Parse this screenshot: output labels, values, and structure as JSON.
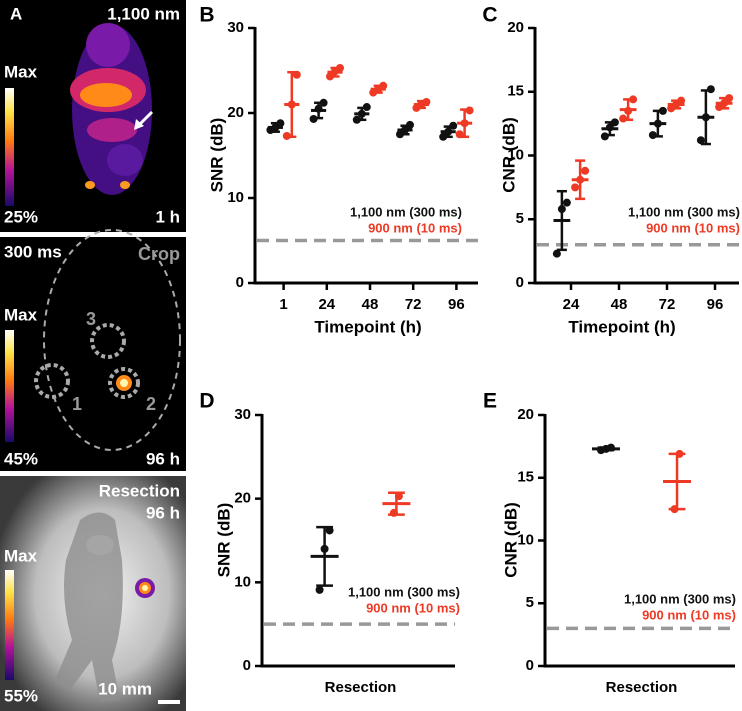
{
  "panel_a": {
    "label": "A",
    "top": {
      "wavelength": "1,100 nm",
      "max": "Max",
      "min": "25%",
      "time": "1 h"
    },
    "middle": {
      "exposure": "300 ms",
      "crop": "Crop",
      "max": "Max",
      "min": "45%",
      "time": "96 h",
      "regions": [
        "1",
        "2",
        "3"
      ]
    },
    "bottom": {
      "title": "Resection",
      "time": "96 h",
      "max": "Max",
      "min": "55%",
      "scale": "10 mm"
    }
  },
  "chart_data": [
    {
      "type": "dot_plot",
      "panel": "B",
      "ylabel": "SNR (dB)",
      "xlabel": "Timepoint (h)",
      "categories": [
        "1",
        "24",
        "48",
        "72",
        "96"
      ],
      "ylim": [
        0,
        30
      ],
      "yticks": [
        0,
        10,
        20,
        30
      ],
      "reference_line": 5,
      "series": [
        {
          "name": "1,100 nm (300 ms)",
          "color": "#111111",
          "points": [
            [
              18.0,
              18.3,
              18.8
            ],
            [
              19.3,
              20.5,
              21.2
            ],
            [
              19.2,
              19.9,
              20.7
            ],
            [
              17.5,
              18.0,
              18.6
            ],
            [
              17.2,
              17.8,
              18.5
            ]
          ],
          "means": [
            18.3,
            20.3,
            19.9,
            18.0,
            17.8
          ],
          "sd": [
            0.5,
            0.9,
            0.7,
            0.5,
            0.6
          ]
        },
        {
          "name": "900 nm (10 ms)",
          "color": "#ee3a24",
          "points": [
            [
              17.3,
              21.0,
              24.5
            ],
            [
              24.3,
              24.9,
              25.3
            ],
            [
              22.4,
              22.8,
              23.2
            ],
            [
              20.6,
              21.0,
              21.3
            ],
            [
              17.5,
              18.8,
              20.3
            ]
          ],
          "means": [
            21.0,
            24.8,
            22.8,
            21.0,
            18.8
          ],
          "sd": [
            3.8,
            0.5,
            0.4,
            0.4,
            1.6
          ]
        }
      ]
    },
    {
      "type": "dot_plot",
      "panel": "C",
      "ylabel": "CNR (dB)",
      "xlabel": "Timepoint (h)",
      "categories": [
        "24",
        "48",
        "72",
        "96"
      ],
      "ylim": [
        0,
        20
      ],
      "yticks": [
        0,
        5,
        10,
        15,
        20
      ],
      "reference_line": 3,
      "series": [
        {
          "name": "1,100 nm (300 ms)",
          "color": "#111111",
          "points": [
            [
              2.3,
              5.8,
              6.3
            ],
            [
              11.5,
              12.2,
              12.6
            ],
            [
              11.6,
              12.5,
              13.5
            ],
            [
              11.2,
              13.0,
              15.2
            ]
          ],
          "means": [
            4.9,
            12.1,
            12.5,
            13.0
          ],
          "sd": [
            2.3,
            0.5,
            1.0,
            2.1
          ]
        },
        {
          "name": "900 nm (10 ms)",
          "color": "#ee3a24",
          "points": [
            [
              7.5,
              8.1,
              8.8
            ],
            [
              12.9,
              13.5,
              14.4
            ],
            [
              13.7,
              14.0,
              14.3
            ],
            [
              13.8,
              14.1,
              14.5
            ]
          ],
          "means": [
            8.1,
            13.6,
            14.0,
            14.1
          ],
          "sd": [
            1.5,
            0.8,
            0.3,
            0.4
          ]
        }
      ]
    },
    {
      "type": "dot_plot",
      "panel": "D",
      "ylabel": "SNR (dB)",
      "categories": [
        "Resection"
      ],
      "ylim": [
        0,
        30
      ],
      "yticks": [
        0,
        10,
        20,
        30
      ],
      "reference_line": 5,
      "series": [
        {
          "name": "1,100 nm (300 ms)",
          "color": "#111111",
          "points": [
            [
              9.1,
              14.0,
              16.2
            ]
          ],
          "means": [
            13.1
          ],
          "sd": [
            3.5
          ]
        },
        {
          "name": "900 nm (10 ms)",
          "color": "#ee3a24",
          "points": [
            [
              18.3,
              20.3
            ]
          ],
          "means": [
            19.4
          ],
          "sd": [
            1.3
          ]
        }
      ]
    },
    {
      "type": "dot_plot",
      "panel": "E",
      "ylabel": "CNR (dB)",
      "categories": [
        "Resection"
      ],
      "ylim": [
        0,
        20
      ],
      "yticks": [
        0,
        5,
        10,
        15,
        20
      ],
      "reference_line": 3,
      "series": [
        {
          "name": "1,100 nm (300 ms)",
          "color": "#111111",
          "points": [
            [
              17.2,
              17.3,
              17.4
            ]
          ],
          "means": [
            17.3
          ],
          "sd": [
            0.1
          ]
        },
        {
          "name": "900 nm (10 ms)",
          "color": "#ee3a24",
          "points": [
            [
              12.5,
              16.9
            ]
          ],
          "means": [
            14.7
          ],
          "sd": [
            2.2
          ]
        }
      ]
    }
  ]
}
